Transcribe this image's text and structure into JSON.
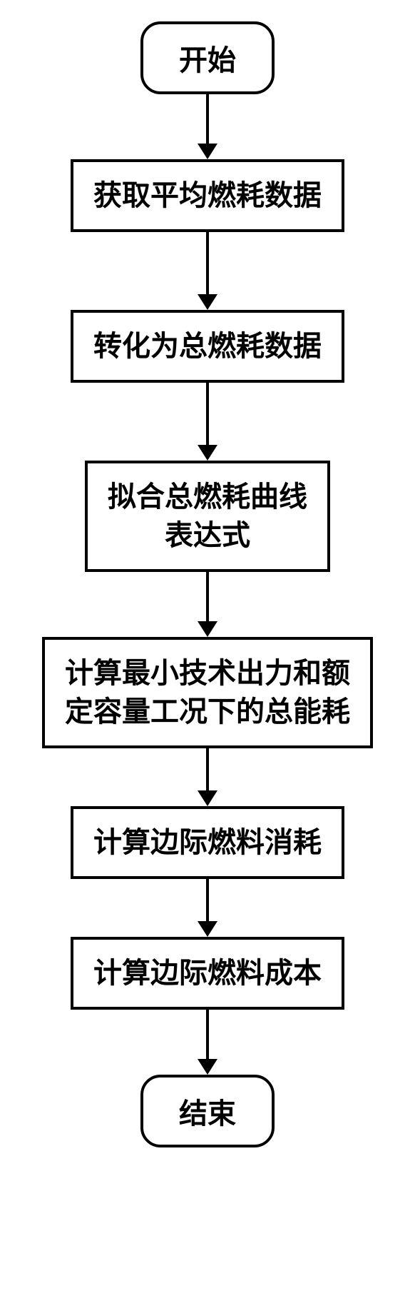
{
  "flow": {
    "type": "flowchart",
    "orientation": "vertical",
    "background_color": "#ffffff",
    "node_border_color": "#000000",
    "node_border_width": 4,
    "arrow_color": "#000000",
    "arrow_line_width": 4,
    "arrow_head_width": 28,
    "arrow_head_height": 22,
    "terminal_border_radius": 28,
    "font_family": "SimSun",
    "font_weight": "bold",
    "nodes": [
      {
        "id": "start",
        "shape": "terminal",
        "label": "开始",
        "fontsize": 40,
        "arrow_after_len": 70
      },
      {
        "id": "n1",
        "shape": "process",
        "label": "获取平均燃耗数据",
        "fontsize": 40,
        "arrow_after_len": 88
      },
      {
        "id": "n2",
        "shape": "process",
        "label": "转化为总燃耗数据",
        "fontsize": 40,
        "arrow_after_len": 88
      },
      {
        "id": "n3",
        "shape": "process",
        "label": "拟合总燃耗曲线\n表达式",
        "fontsize": 40,
        "arrow_after_len": 70
      },
      {
        "id": "n4",
        "shape": "process",
        "label": "计算最小技术出力和额\n定容量工况下的总能耗",
        "fontsize": 40,
        "arrow_after_len": 60
      },
      {
        "id": "n5",
        "shape": "process",
        "label": "计算边际燃料消耗",
        "fontsize": 40,
        "arrow_after_len": 60
      },
      {
        "id": "n6",
        "shape": "process",
        "label": "计算边际燃料成本",
        "fontsize": 40,
        "arrow_after_len": 70
      },
      {
        "id": "end",
        "shape": "terminal",
        "label": "结束",
        "fontsize": 40,
        "arrow_after_len": 0
      }
    ]
  }
}
